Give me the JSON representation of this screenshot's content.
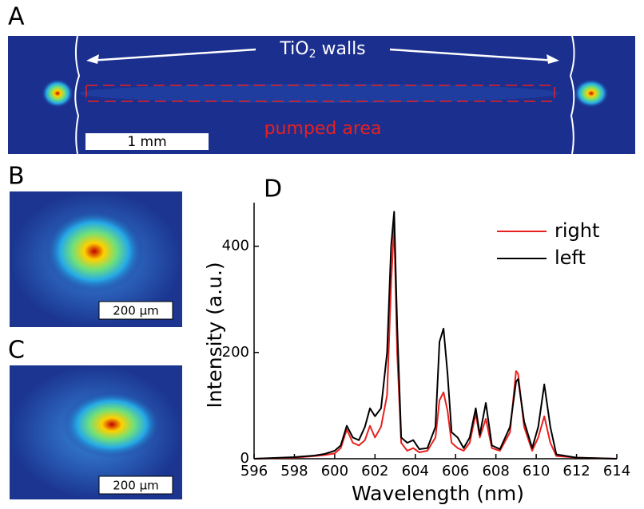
{
  "panels": {
    "a": {
      "label": "A",
      "walls": "TiO",
      "walls_sub": "2",
      "walls_tail": " walls",
      "pumped": "pumped area",
      "scale": "1 mm"
    },
    "b": {
      "label": "B",
      "scale": "200 µm"
    },
    "c": {
      "label": "C",
      "scale": "200 µm"
    }
  },
  "chart_data": {
    "type": "line",
    "label": "D",
    "x": [
      596,
      598,
      599,
      599.5,
      600,
      600.3,
      600.6,
      600.9,
      601.2,
      601.5,
      601.75,
      602,
      602.3,
      602.6,
      602.8,
      602.95,
      603.1,
      603.3,
      603.6,
      603.9,
      604.2,
      604.6,
      605,
      605.2,
      605.4,
      605.6,
      605.8,
      606.1,
      606.4,
      606.7,
      607,
      607.2,
      607.5,
      607.8,
      608.2,
      608.7,
      609,
      609.1,
      609.4,
      609.8,
      610.1,
      610.4,
      610.7,
      611,
      612,
      614
    ],
    "series": [
      {
        "name": "right",
        "color": "#e8211f",
        "values": [
          0,
          2,
          5,
          7,
          10,
          20,
          55,
          30,
          25,
          35,
          62,
          40,
          60,
          120,
          330,
          440,
          200,
          30,
          15,
          20,
          12,
          15,
          40,
          110,
          125,
          90,
          30,
          20,
          15,
          30,
          85,
          40,
          75,
          20,
          15,
          50,
          165,
          160,
          60,
          15,
          40,
          80,
          30,
          5,
          2,
          0
        ]
      },
      {
        "name": "left",
        "color": "#000000",
        "values": [
          0,
          3,
          6,
          9,
          15,
          25,
          62,
          40,
          35,
          60,
          95,
          80,
          95,
          200,
          400,
          465,
          250,
          40,
          30,
          35,
          18,
          20,
          60,
          220,
          245,
          160,
          50,
          40,
          20,
          40,
          95,
          45,
          105,
          25,
          18,
          60,
          145,
          150,
          70,
          20,
          60,
          140,
          60,
          8,
          2,
          0
        ]
      }
    ],
    "xlabel": "Wavelength (nm)",
    "ylabel": "Intensity (a.u.)",
    "xlim": [
      596,
      614
    ],
    "xticks": [
      596,
      598,
      600,
      602,
      604,
      606,
      608,
      610,
      612,
      614
    ],
    "ylim": [
      0,
      470
    ],
    "yticks": [
      0,
      200,
      400
    ],
    "legend": "upper right"
  }
}
